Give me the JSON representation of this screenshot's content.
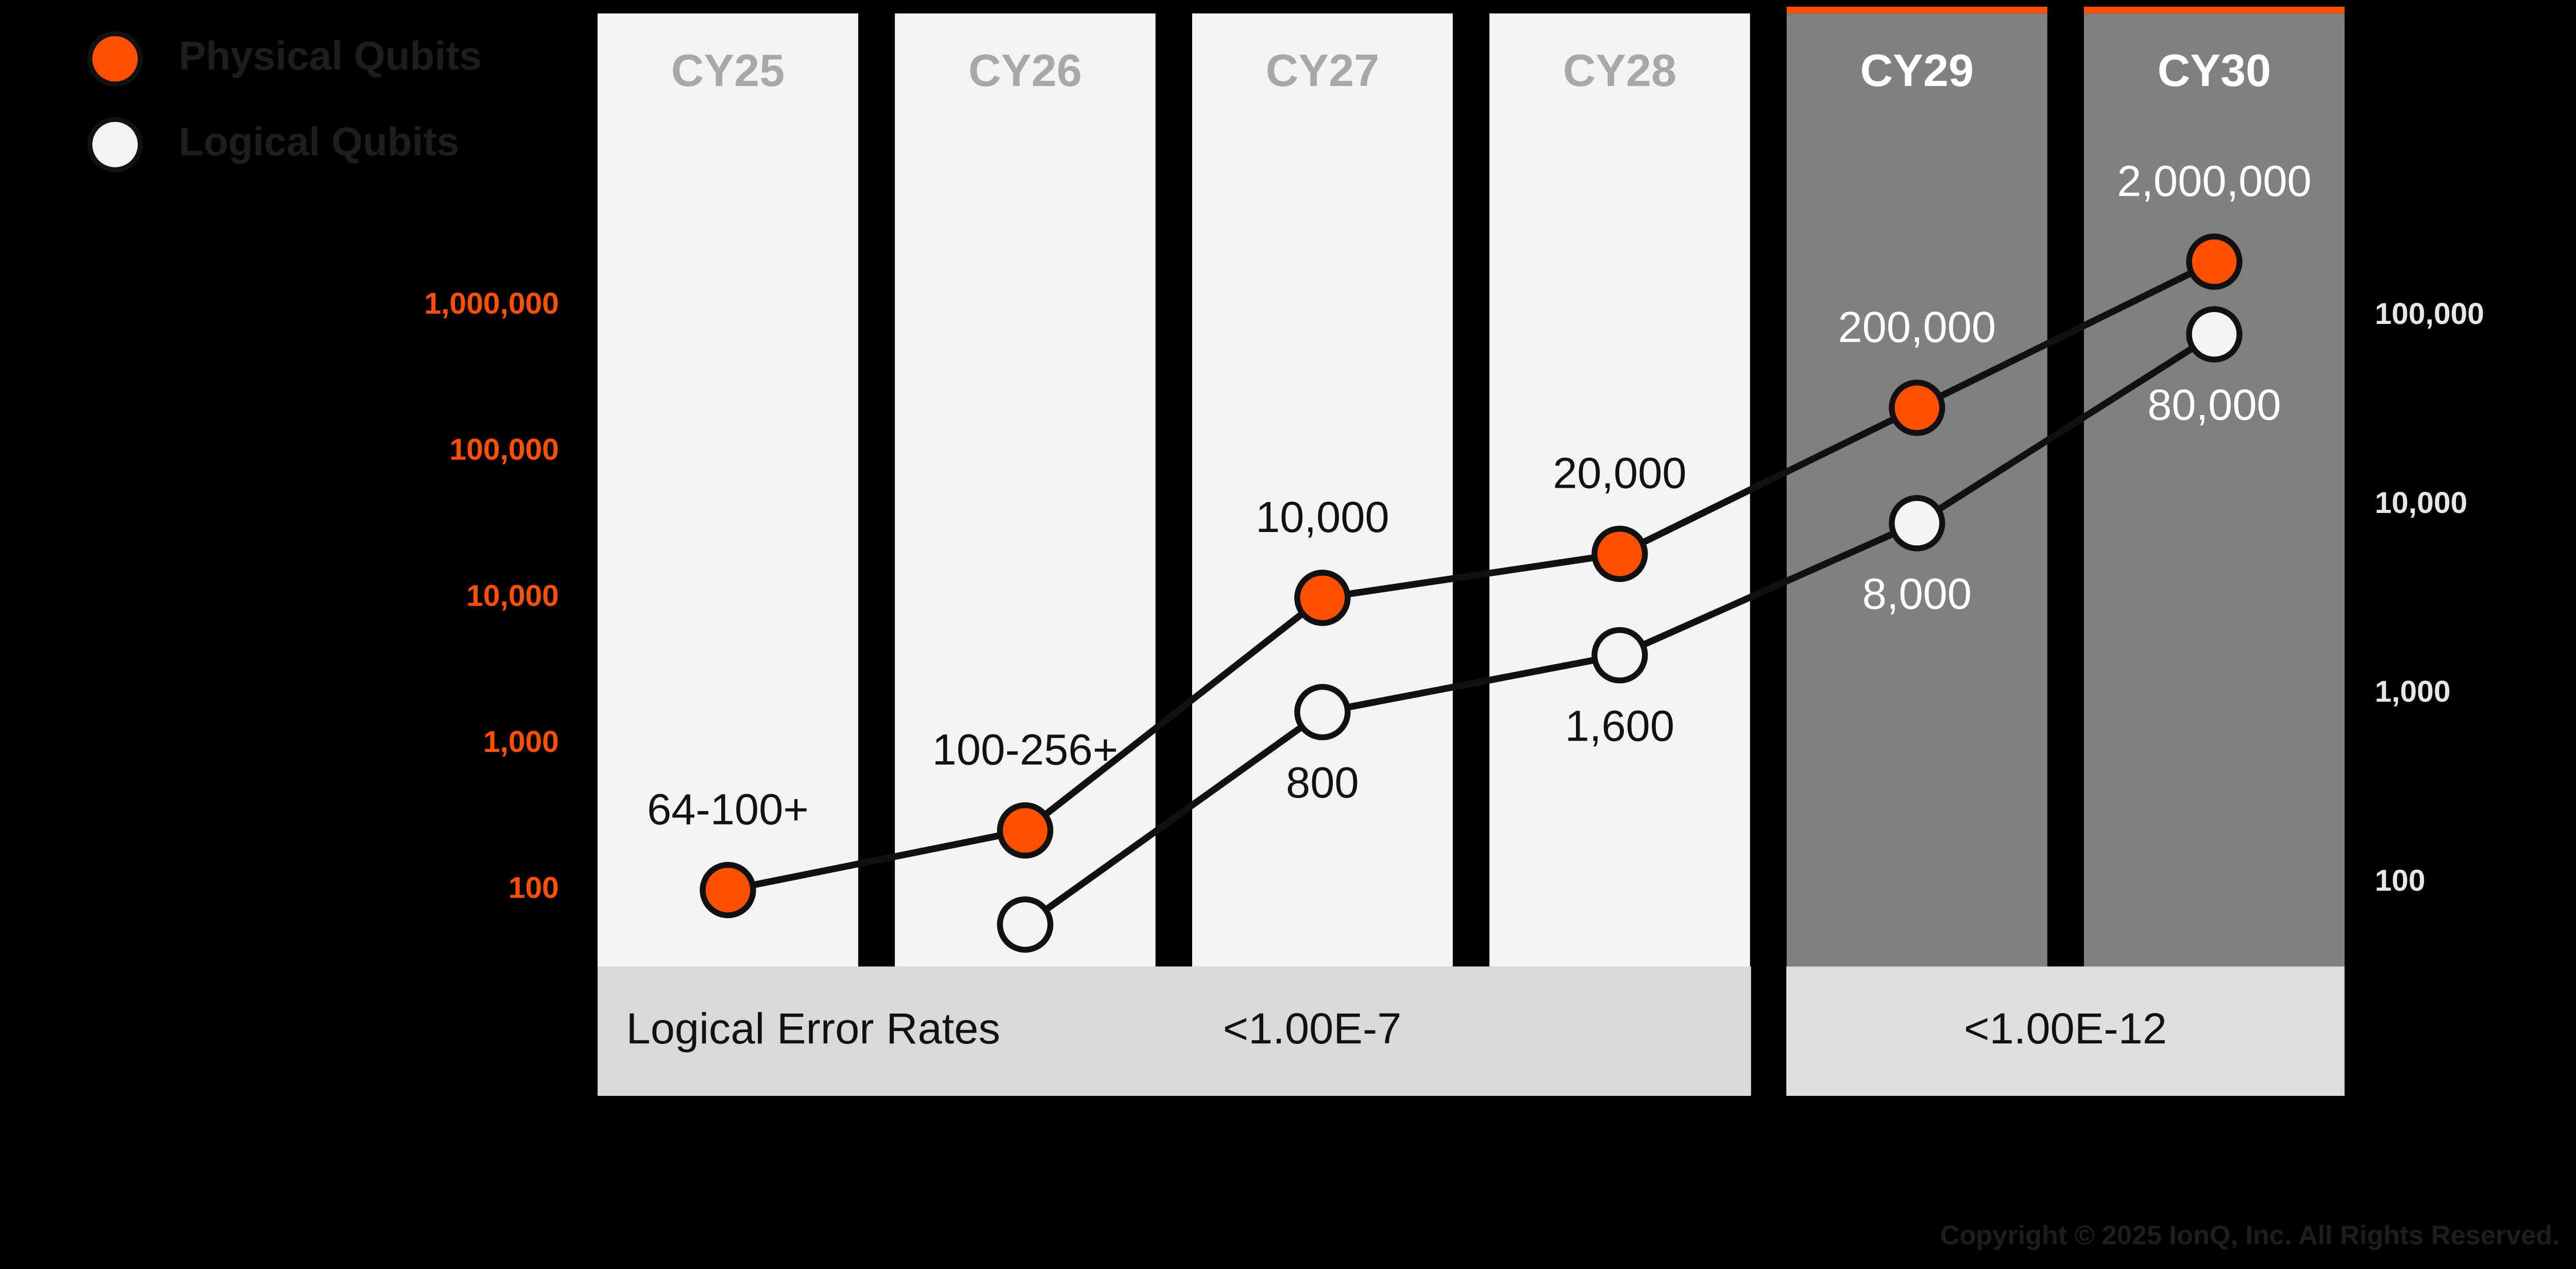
{
  "chart_data": {
    "type": "line",
    "categories": [
      "CY25",
      "CY26",
      "CY27",
      "CY28",
      "CY29",
      "CY30"
    ],
    "series": [
      {
        "name": "Physical Qubits",
        "color": "#fe5000",
        "values": [
          100,
          256,
          10000,
          20000,
          200000,
          2000000
        ],
        "value_labels": [
          "64-100+",
          "100-256+",
          "10,000",
          "20,000",
          "200,000",
          "2,000,000"
        ]
      },
      {
        "name": "Logical Qubits",
        "color": "#f4f4f4",
        "axis": "y2",
        "values": [
          null,
          60,
          800,
          1600,
          8000,
          80000
        ],
        "value_labels": [
          null,
          null,
          "800",
          "1,600",
          "8,000",
          "80,000"
        ]
      }
    ],
    "yscale": "log",
    "ylim": [
      30,
      100000000
    ],
    "yticks": [
      100,
      {
        "value": 1000,
        "label": "1,000"
      },
      {
        "value": 10000,
        "label": "10,000"
      },
      {
        "value": 100000,
        "label": "100,000"
      },
      {
        "value": 1000000,
        "label": "1,000,000"
      }
    ],
    "y2lim": [
      36,
      4000000
    ],
    "y2ticks": [
      100,
      {
        "value": 1000,
        "label": "1,000"
      },
      {
        "value": 10000,
        "label": "10,000"
      },
      {
        "value": 100000,
        "label": "100,000"
      }
    ],
    "legend": "upper left",
    "error_rates": {
      "label": "Logical Error Rates",
      "values": [
        "<1.00E-7",
        "<1.00E-12"
      ]
    },
    "copyright": "Copyright © 2025 IonQ, Inc. All Rights Reserved."
  }
}
